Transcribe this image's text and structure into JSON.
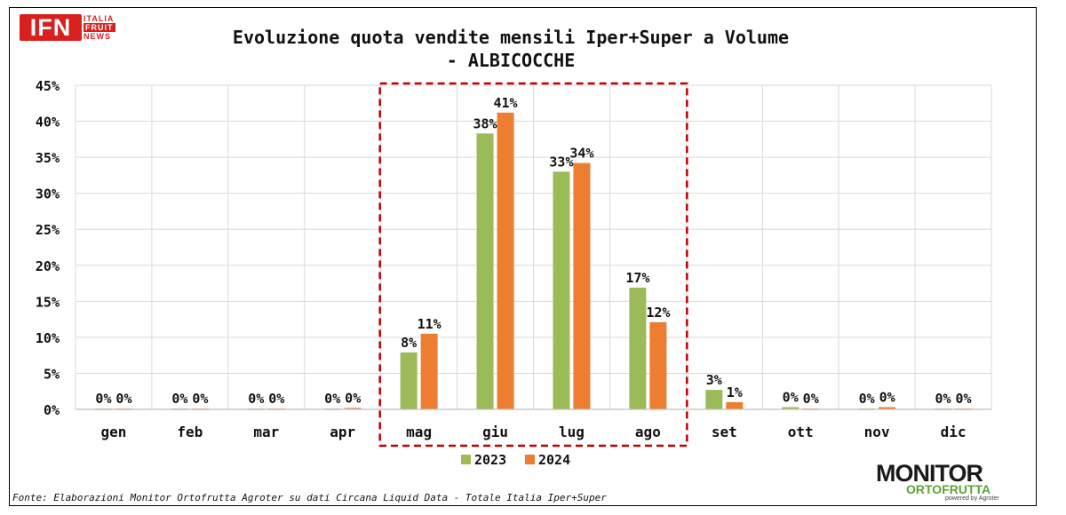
{
  "logos": {
    "ifn": {
      "main": "IFN",
      "line1": "ITALIA",
      "line2": "FRUIT",
      "line3": "NEWS"
    },
    "monitor": {
      "main": "MONITOR",
      "sub": "ORTOFRUTTA",
      "powered": "powered by Agroter"
    }
  },
  "source_note": "Fonte: Elaborazioni Monitor Ortofrutta Agroter su dati Circana Liquid Data - Totale Italia Iper+Super",
  "chart_data": {
    "type": "bar",
    "title": "Evoluzione quota vendite mensili Iper+Super a Volume",
    "subtitle": "- ALBICOCCHE",
    "categories": [
      "gen",
      "feb",
      "mar",
      "apr",
      "mag",
      "giu",
      "lug",
      "ago",
      "set",
      "ott",
      "nov",
      "dic"
    ],
    "series": [
      {
        "name": "2023",
        "color": "#9bbb59",
        "values": [
          0.1,
          0.1,
          0.1,
          0.1,
          7.9,
          38.3,
          33.0,
          16.9,
          2.7,
          0.3,
          0.1,
          0.1
        ],
        "labels": [
          "0%",
          "0%",
          "0%",
          "0%",
          "8%",
          "38%",
          "33%",
          "17%",
          "3%",
          "0%",
          "0%",
          "0%"
        ]
      },
      {
        "name": "2024",
        "color": "#ed7d31",
        "values": [
          0.1,
          0.1,
          0.1,
          0.2,
          10.5,
          41.2,
          34.2,
          12.1,
          1.0,
          0.1,
          0.3,
          0.1
        ],
        "labels": [
          "0%",
          "0%",
          "0%",
          "0%",
          "11%",
          "41%",
          "34%",
          "12%",
          "1%",
          "0%",
          "0%",
          "0%"
        ]
      }
    ],
    "ylim": [
      0,
      45
    ],
    "yticks": [
      "0%",
      "5%",
      "10%",
      "15%",
      "20%",
      "25%",
      "30%",
      "35%",
      "40%",
      "45%"
    ],
    "xlabel": "",
    "ylabel": "",
    "grid": "vertical lines between categories and horizontal lines",
    "legend": "bottom-center",
    "highlight": {
      "from": "mag",
      "to": "ago",
      "style": "dashed",
      "color": "#c00000"
    }
  }
}
